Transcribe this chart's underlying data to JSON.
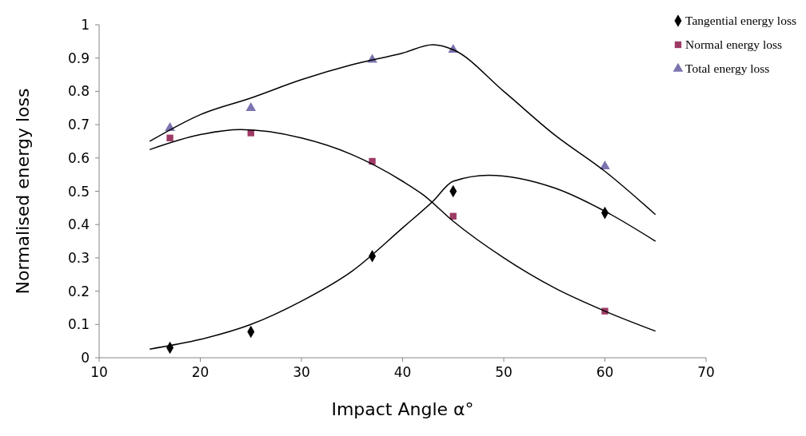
{
  "chart_data": {
    "type": "scatter",
    "xlabel": "Impact Angle α°",
    "ylabel": "Normalised energy loss",
    "xlim": [
      10,
      70
    ],
    "xticks": [
      10,
      20,
      30,
      40,
      50,
      60,
      70
    ],
    "ylim": [
      0,
      1
    ],
    "yticks": [
      0,
      0.1,
      0.2,
      0.3,
      0.4,
      0.5,
      0.6,
      0.7,
      0.8,
      0.9,
      1
    ],
    "grid": false,
    "legend": "top right",
    "x": [
      17,
      25,
      37,
      45,
      60
    ],
    "series": [
      {
        "name": "Tangential energy loss",
        "color": "#000000",
        "marker": "diamond",
        "values": [
          0.03,
          0.078,
          0.305,
          0.5,
          0.435
        ]
      },
      {
        "name": "Normal energy loss",
        "color": "#9e3a66",
        "marker": "square",
        "values": [
          0.66,
          0.675,
          0.59,
          0.425,
          0.14
        ]
      },
      {
        "name": "Total energy loss",
        "color": "#7b74b0",
        "marker": "triangle",
        "values": [
          0.69,
          0.75,
          0.895,
          0.925,
          0.575
        ]
      },
      {
        "type": "line",
        "color": "#000000",
        "marker": "none",
        "x": [
          15,
          20,
          25,
          30,
          35,
          40,
          43,
          45,
          48.5,
          55,
          60,
          65
        ],
        "values": [
          0.026,
          0.055,
          0.1,
          0.17,
          0.26,
          0.39,
          0.47,
          0.53,
          0.548,
          0.51,
          0.44,
          0.35
        ]
      },
      {
        "type": "line",
        "color": "#000000",
        "marker": "none",
        "x": [
          15,
          20,
          24,
          30,
          35,
          40,
          42,
          45,
          50,
          55,
          60,
          65
        ],
        "values": [
          0.625,
          0.67,
          0.685,
          0.66,
          0.61,
          0.53,
          0.49,
          0.41,
          0.3,
          0.21,
          0.14,
          0.08
        ]
      },
      {
        "type": "line",
        "color": "#000000",
        "marker": "none",
        "x": [
          15,
          20,
          25,
          30,
          35,
          40,
          43,
          45,
          50,
          55,
          60,
          65
        ],
        "values": [
          0.65,
          0.73,
          0.78,
          0.835,
          0.88,
          0.915,
          0.94,
          0.925,
          0.8,
          0.67,
          0.56,
          0.43
        ]
      }
    ]
  }
}
